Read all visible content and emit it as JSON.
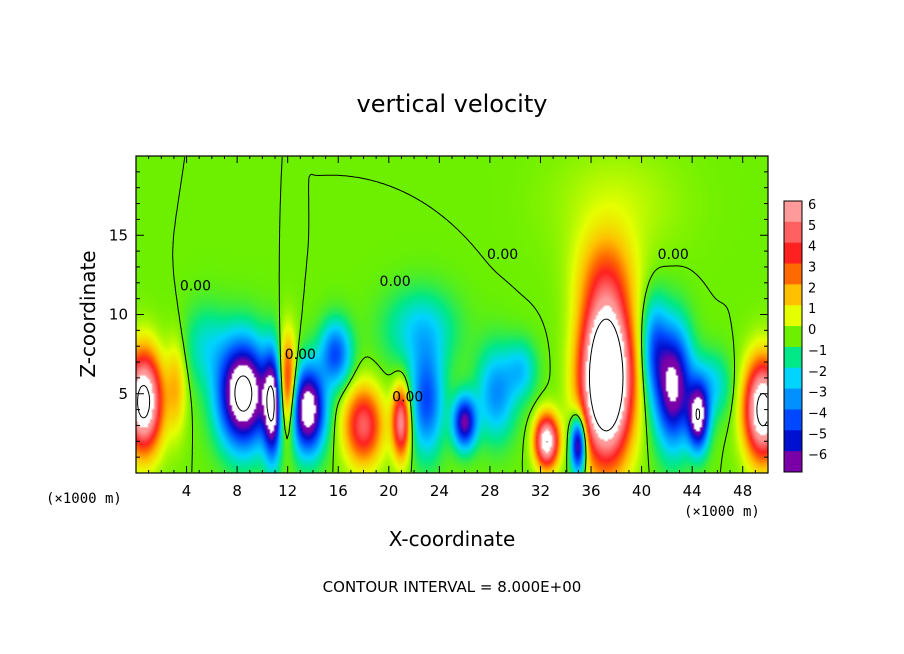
{
  "chart_data": {
    "type": "heatmap",
    "title": "vertical velocity",
    "xlabel": "X-coordinate",
    "ylabel": "Z-coordinate",
    "x_unit": "(×1000 m)",
    "xlim": [
      0,
      50
    ],
    "ylim": [
      0,
      20
    ],
    "x_ticks": [
      4,
      8,
      12,
      16,
      20,
      24,
      28,
      32,
      36,
      40,
      44,
      48
    ],
    "y_ticks": [
      5,
      10,
      15
    ],
    "colorbar": {
      "ticks": [
        6,
        5,
        4,
        3,
        2,
        1,
        0,
        -1,
        -2,
        -3,
        -4,
        -5,
        -6
      ],
      "colors": [
        "#ff9a9a",
        "#ff6060",
        "#ff2020",
        "#ff6a00",
        "#ffc000",
        "#e6ff00",
        "#6cf000",
        "#00e888",
        "#00d4ff",
        "#0090ff",
        "#0048ff",
        "#0010d0",
        "#7a00a8"
      ]
    },
    "background_value": 0,
    "blobs": [
      {
        "x": 0.6,
        "z": 4.5,
        "value": 9,
        "sx": 1.4,
        "sz": 3.0
      },
      {
        "x": 8.5,
        "z": 5.0,
        "value": -9,
        "sx": 1.9,
        "sz": 3.2
      },
      {
        "x": 10.8,
        "z": 4.2,
        "value": -7,
        "sx": 0.7,
        "sz": 3.2
      },
      {
        "x": 12.0,
        "z": 5.5,
        "value": 5,
        "sx": 0.7,
        "sz": 3.0
      },
      {
        "x": 13.6,
        "z": 4.0,
        "value": -8,
        "sx": 1.3,
        "sz": 2.6
      },
      {
        "x": 15.8,
        "z": 7.5,
        "value": -4,
        "sx": 1.2,
        "sz": 2.0
      },
      {
        "x": 18.0,
        "z": 3.0,
        "value": 5,
        "sx": 1.5,
        "sz": 2.4
      },
      {
        "x": 21.0,
        "z": 3.2,
        "value": 6,
        "sx": 0.7,
        "sz": 2.2
      },
      {
        "x": 23.0,
        "z": 4.5,
        "value": -4,
        "sx": 1.3,
        "sz": 3.2
      },
      {
        "x": 22.5,
        "z": 9.0,
        "value": -2,
        "sx": 2.8,
        "sz": 2.5
      },
      {
        "x": 26.0,
        "z": 3.2,
        "value": -6,
        "sx": 0.9,
        "sz": 1.6
      },
      {
        "x": 28.5,
        "z": 5.0,
        "value": -3,
        "sx": 1.5,
        "sz": 2.8
      },
      {
        "x": 32.5,
        "z": 2.0,
        "value": 8,
        "sx": 0.9,
        "sz": 1.6
      },
      {
        "x": 35.0,
        "z": 1.8,
        "value": -7,
        "sx": 0.6,
        "sz": 1.8
      },
      {
        "x": 37.2,
        "z": 6.0,
        "value": 13,
        "sx": 1.9,
        "sz": 4.8
      },
      {
        "x": 37.2,
        "z": 12.5,
        "value": 2,
        "sx": 2.4,
        "sz": 3.0
      },
      {
        "x": 38.0,
        "z": 17.0,
        "value": 0.7,
        "sx": 5.0,
        "sz": 3.5
      },
      {
        "x": 42.5,
        "z": 5.5,
        "value": -7,
        "sx": 1.4,
        "sz": 3.6
      },
      {
        "x": 44.5,
        "z": 3.5,
        "value": -7,
        "sx": 0.8,
        "sz": 2.0
      },
      {
        "x": 41.0,
        "z": 8.0,
        "value": -3,
        "sx": 1.0,
        "sz": 3.0
      },
      {
        "x": 45.5,
        "z": 5.5,
        "value": -2,
        "sx": 1.5,
        "sz": 2.0
      },
      {
        "x": 49.6,
        "z": 4.0,
        "value": 9,
        "sx": 1.4,
        "sz": 3.0
      },
      {
        "x": 30.5,
        "z": 6.5,
        "value": -2,
        "sx": 1.2,
        "sz": 1.8
      },
      {
        "x": 5.5,
        "z": 8.0,
        "value": -1.5,
        "sx": 1.8,
        "sz": 2.5
      },
      {
        "x": 3.2,
        "z": 5.5,
        "value": 2,
        "sx": 0.8,
        "sz": 3.0
      }
    ],
    "contour_labels": [
      {
        "text": "0.00",
        "x": 4.7,
        "z": 11.5
      },
      {
        "text": "0.00",
        "x": 20.5,
        "z": 11.8
      },
      {
        "text": "0.00",
        "x": 13.0,
        "z": 7.2
      },
      {
        "text": "0.00",
        "x": 21.5,
        "z": 4.5
      },
      {
        "text": "0.00",
        "x": 29.0,
        "z": 13.5
      },
      {
        "text": "0.00",
        "x": 42.5,
        "z": 13.5
      }
    ],
    "contour_interval_note": "CONTOUR INTERVAL = 8.000E+00"
  }
}
